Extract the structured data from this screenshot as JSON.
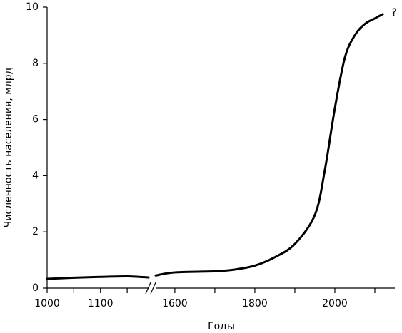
{
  "chart_data": {
    "type": "line",
    "ylabel": "Численность населения, млрд",
    "xlabel": "Годы",
    "annotation": "?",
    "ylim": [
      0,
      10
    ],
    "yticks": [
      0,
      2,
      4,
      6,
      8,
      10
    ],
    "xsegments": [
      {
        "xlim": [
          1000,
          1190
        ],
        "xticks": [
          1000,
          1100
        ],
        "xminorticks": [
          1050,
          1150
        ]
      },
      {
        "xlim": [
          1552,
          2150
        ],
        "xticks": [
          1600,
          1800,
          2000
        ],
        "xminorticks": [
          1700,
          1900,
          2100
        ]
      }
    ],
    "series": [
      {
        "color": "#000000",
        "x": [
          1000,
          1050,
          1100,
          1150,
          1190
        ],
        "values": [
          0.33,
          0.37,
          0.4,
          0.42,
          0.38
        ]
      },
      {
        "color": "#000000",
        "x": [
          1552,
          1600,
          1700,
          1750,
          1800,
          1850,
          1900,
          1950,
          1975,
          2000,
          2025,
          2050,
          2075,
          2100,
          2120
        ],
        "values": [
          0.45,
          0.56,
          0.6,
          0.66,
          0.8,
          1.1,
          1.57,
          2.6,
          4.2,
          6.4,
          8.2,
          9.0,
          9.4,
          9.6,
          9.75
        ]
      }
    ]
  }
}
